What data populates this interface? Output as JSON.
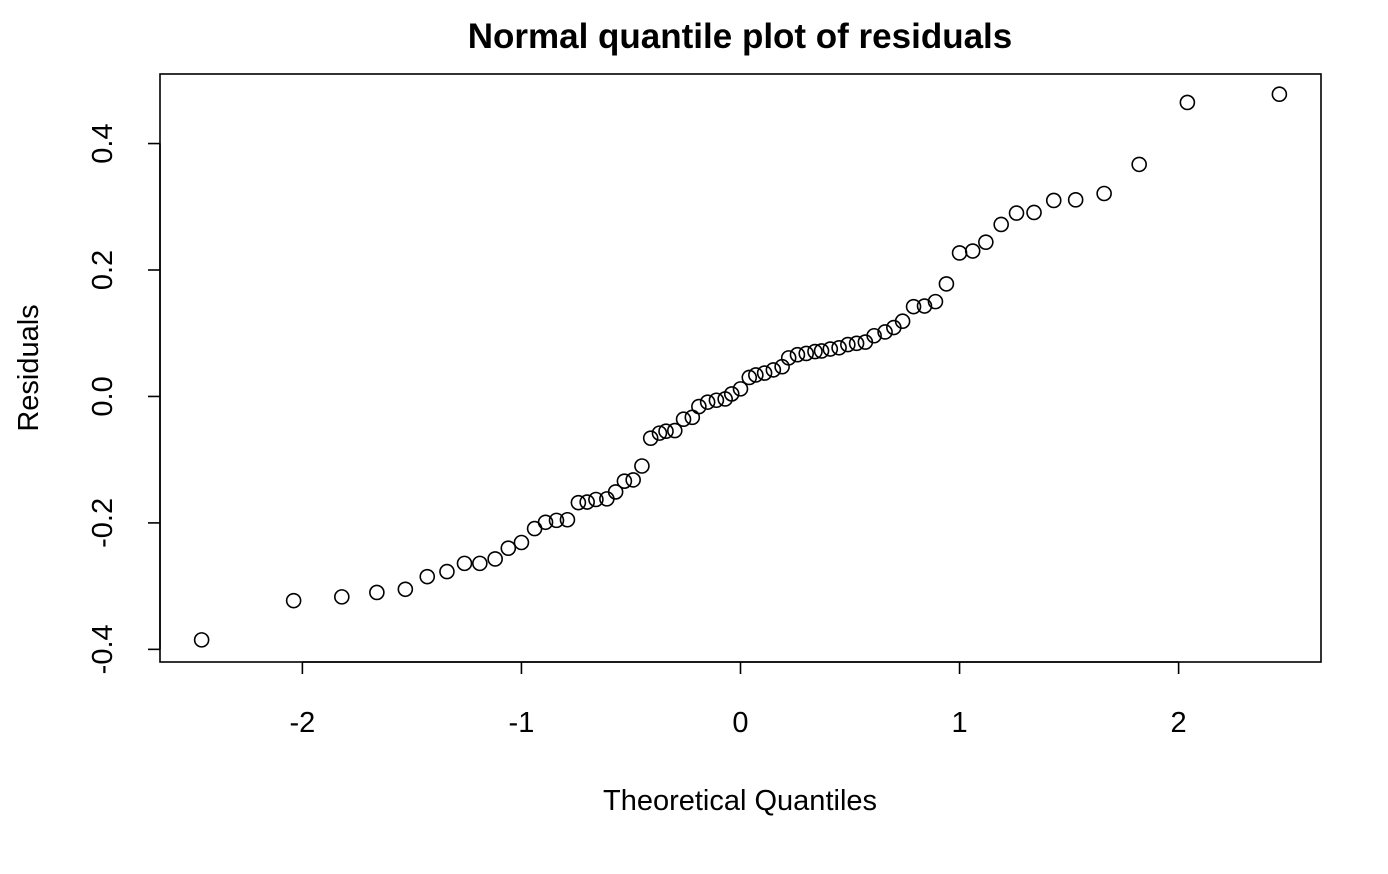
{
  "chart_data": {
    "type": "scatter",
    "title": "Normal quantile plot of residuals",
    "xlabel": "Theoretical Quantiles",
    "ylabel": "Residuals",
    "xlim": [
      -2.65,
      2.65
    ],
    "ylim": [
      -0.42,
      0.51
    ],
    "xticks": [
      -2,
      -1,
      0,
      1,
      2
    ],
    "xtick_labels": [
      "-2",
      "-1",
      "0",
      "1",
      "2"
    ],
    "yticks": [
      -0.4,
      -0.2,
      0.0,
      0.2,
      0.4
    ],
    "ytick_labels": [
      "-0.4",
      "-0.2",
      "0.0",
      "0.2",
      "0.4"
    ],
    "grid": false,
    "marker": "open-circle",
    "points": [
      [
        -2.46,
        -0.385
      ],
      [
        -2.04,
        -0.323
      ],
      [
        -1.82,
        -0.317
      ],
      [
        -1.66,
        -0.31
      ],
      [
        -1.53,
        -0.305
      ],
      [
        -1.43,
        -0.285
      ],
      [
        -1.34,
        -0.277
      ],
      [
        -1.26,
        -0.264
      ],
      [
        -1.19,
        -0.264
      ],
      [
        -1.12,
        -0.257
      ],
      [
        -1.06,
        -0.24
      ],
      [
        -1.0,
        -0.231
      ],
      [
        -0.94,
        -0.209
      ],
      [
        -0.89,
        -0.199
      ],
      [
        -0.84,
        -0.196
      ],
      [
        -0.79,
        -0.195
      ],
      [
        -0.74,
        -0.168
      ],
      [
        -0.7,
        -0.167
      ],
      [
        -0.66,
        -0.163
      ],
      [
        -0.61,
        -0.162
      ],
      [
        -0.57,
        -0.151
      ],
      [
        -0.53,
        -0.134
      ],
      [
        -0.49,
        -0.132
      ],
      [
        -0.45,
        -0.11
      ],
      [
        -0.41,
        -0.066
      ],
      [
        -0.37,
        -0.058
      ],
      [
        -0.34,
        -0.055
      ],
      [
        -0.3,
        -0.054
      ],
      [
        -0.26,
        -0.036
      ],
      [
        -0.22,
        -0.033
      ],
      [
        -0.19,
        -0.016
      ],
      [
        -0.15,
        -0.009
      ],
      [
        -0.11,
        -0.006
      ],
      [
        -0.07,
        -0.004
      ],
      [
        -0.04,
        0.004
      ],
      [
        0.0,
        0.012
      ],
      [
        0.04,
        0.03
      ],
      [
        0.07,
        0.034
      ],
      [
        0.11,
        0.037
      ],
      [
        0.15,
        0.042
      ],
      [
        0.19,
        0.047
      ],
      [
        0.22,
        0.061
      ],
      [
        0.26,
        0.066
      ],
      [
        0.3,
        0.068
      ],
      [
        0.34,
        0.071
      ],
      [
        0.37,
        0.072
      ],
      [
        0.41,
        0.075
      ],
      [
        0.45,
        0.077
      ],
      [
        0.49,
        0.082
      ],
      [
        0.53,
        0.084
      ],
      [
        0.57,
        0.086
      ],
      [
        0.61,
        0.096
      ],
      [
        0.66,
        0.102
      ],
      [
        0.7,
        0.109
      ],
      [
        0.74,
        0.119
      ],
      [
        0.79,
        0.142
      ],
      [
        0.84,
        0.143
      ],
      [
        0.89,
        0.15
      ],
      [
        0.94,
        0.178
      ],
      [
        1.0,
        0.227
      ],
      [
        1.06,
        0.23
      ],
      [
        1.12,
        0.244
      ],
      [
        1.19,
        0.272
      ],
      [
        1.26,
        0.29
      ],
      [
        1.34,
        0.291
      ],
      [
        1.43,
        0.31
      ],
      [
        1.53,
        0.311
      ],
      [
        1.66,
        0.321
      ],
      [
        1.82,
        0.367
      ],
      [
        2.04,
        0.465
      ],
      [
        2.46,
        0.478
      ]
    ]
  }
}
